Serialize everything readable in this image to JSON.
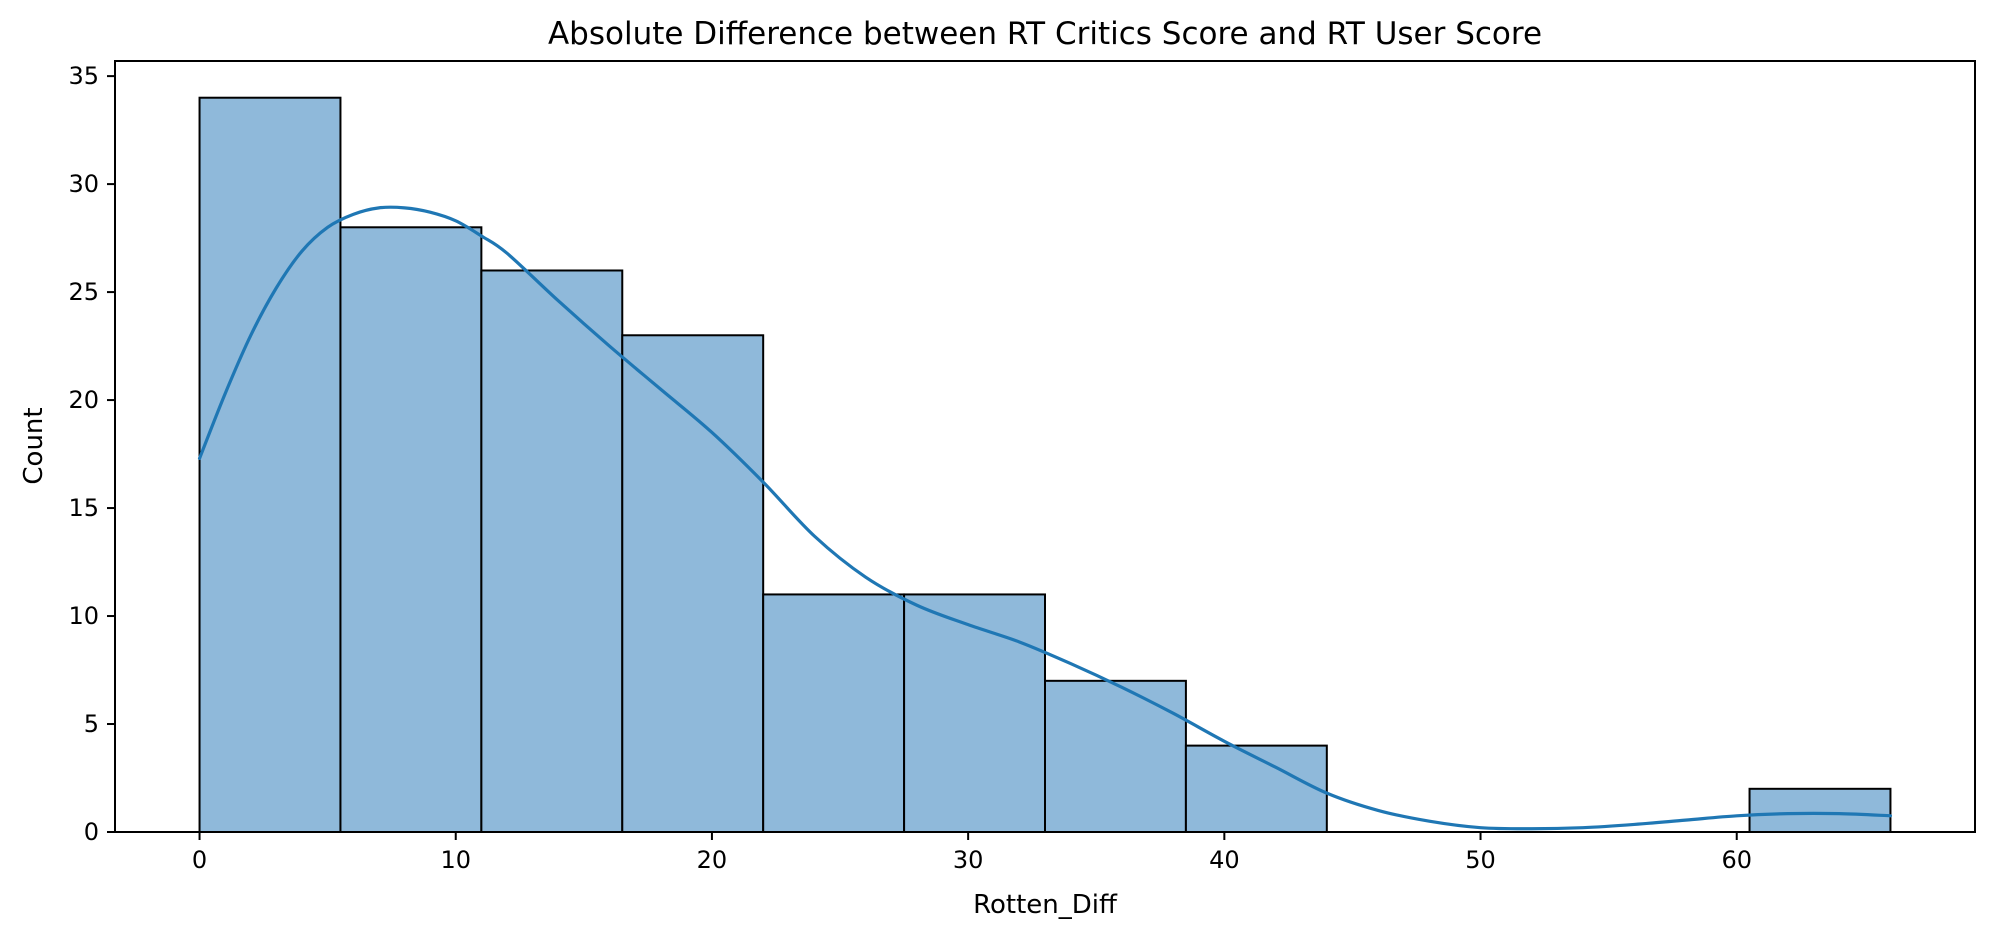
{
  "chart_data": {
    "type": "bar",
    "title": "Absolute Difference between RT Critics Score and RT User Score",
    "xlabel": "Rotten_Diff",
    "ylabel": "Count",
    "xlim": [
      -3.3,
      69.3
    ],
    "ylim": [
      0,
      35.7
    ],
    "x_ticks": [
      0,
      10,
      20,
      30,
      40,
      50,
      60
    ],
    "y_ticks": [
      0,
      5,
      10,
      15,
      20,
      25,
      30,
      35
    ],
    "grid": false,
    "bins": [
      {
        "x0": 0.0,
        "x1": 5.5,
        "count": 34
      },
      {
        "x0": 5.5,
        "x1": 11.0,
        "count": 28
      },
      {
        "x0": 11.0,
        "x1": 16.5,
        "count": 26
      },
      {
        "x0": 16.5,
        "x1": 22.0,
        "count": 23
      },
      {
        "x0": 22.0,
        "x1": 27.5,
        "count": 11
      },
      {
        "x0": 27.5,
        "x1": 33.0,
        "count": 11
      },
      {
        "x0": 33.0,
        "x1": 38.5,
        "count": 7
      },
      {
        "x0": 38.5,
        "x1": 44.0,
        "count": 4
      },
      {
        "x0": 44.0,
        "x1": 49.5,
        "count": 0
      },
      {
        "x0": 49.5,
        "x1": 55.0,
        "count": 0
      },
      {
        "x0": 55.0,
        "x1": 60.5,
        "count": 0
      },
      {
        "x0": 60.5,
        "x1": 66.0,
        "count": 2
      }
    ],
    "kde": {
      "x": [
        0,
        1,
        2,
        3,
        4,
        5,
        6,
        7,
        8,
        9,
        10,
        11,
        12,
        14,
        16,
        18,
        20,
        22,
        24,
        26,
        28,
        30,
        32,
        34,
        36,
        38,
        40,
        42,
        44,
        46,
        48,
        50,
        52,
        54,
        56,
        58,
        60,
        62,
        64,
        66
      ],
      "y": [
        17.3,
        20.3,
        23.0,
        25.2,
        26.9,
        28.0,
        28.6,
        28.9,
        28.9,
        28.7,
        28.3,
        27.6,
        26.8,
        24.6,
        22.5,
        20.5,
        18.5,
        16.2,
        13.7,
        11.8,
        10.5,
        9.6,
        8.8,
        7.8,
        6.7,
        5.5,
        4.2,
        3.0,
        1.8,
        1.0,
        0.5,
        0.2,
        0.15,
        0.2,
        0.35,
        0.55,
        0.75,
        0.85,
        0.85,
        0.75
      ]
    },
    "colors": {
      "bar_fill": "#8fb9da",
      "bar_edge": "#000000",
      "kde_line": "#1f77b4"
    }
  }
}
